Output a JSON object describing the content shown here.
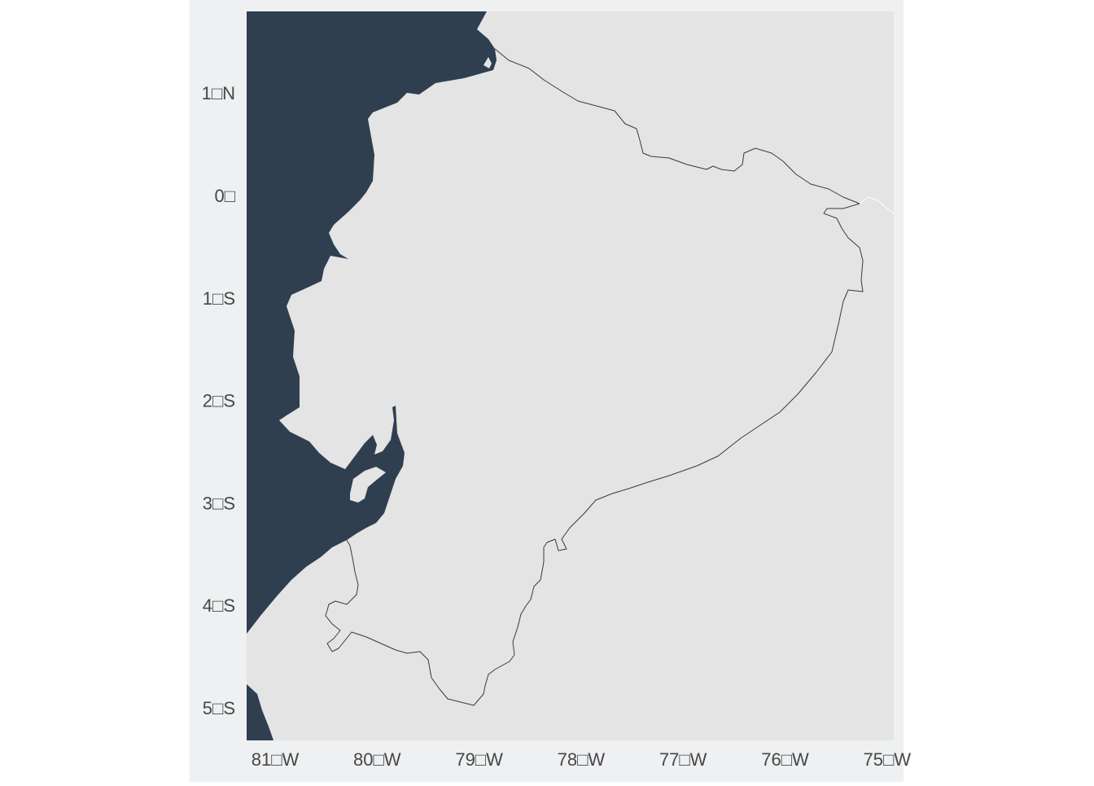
{
  "colors": {
    "panel_background": "#eef0f2",
    "land": "#e4e4e4",
    "water": "#2f3f50",
    "border": "#3a3a3a",
    "tick_label": "#474747"
  },
  "axes": {
    "y_ticks": [
      {
        "value": 1,
        "label": "1□N"
      },
      {
        "value": 0,
        "label": "0□"
      },
      {
        "value": -1,
        "label": "1□S"
      },
      {
        "value": -2,
        "label": "2□S"
      },
      {
        "value": -3,
        "label": "3□S"
      },
      {
        "value": -4,
        "label": "4□S"
      },
      {
        "value": -5,
        "label": "5□S"
      }
    ],
    "x_ticks": [
      {
        "value": -81,
        "label": "81□W"
      },
      {
        "value": -80,
        "label": "80□W"
      },
      {
        "value": -79,
        "label": "79□W"
      },
      {
        "value": -78,
        "label": "78□W"
      },
      {
        "value": -77,
        "label": "77□W"
      },
      {
        "value": -76,
        "label": "76□W"
      },
      {
        "value": -75,
        "label": "75□W"
      }
    ]
  }
}
